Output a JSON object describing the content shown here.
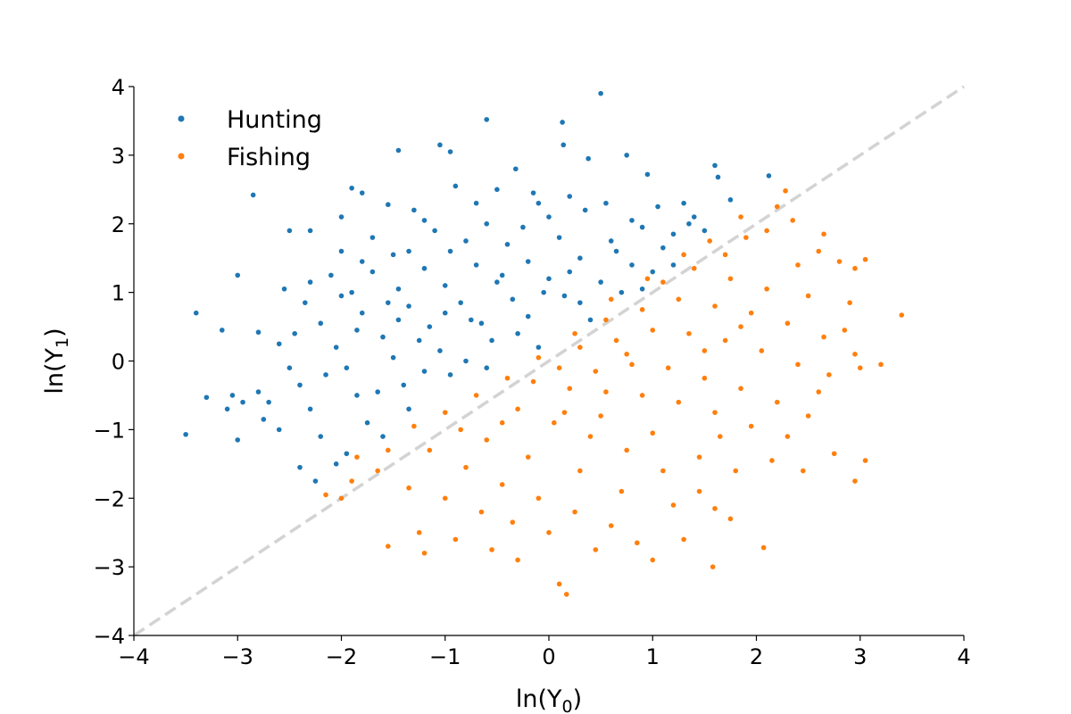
{
  "chart_data": {
    "type": "scatter",
    "xlabel": "ln(Y",
    "xlabel_sub": "0",
    "xlabel_close": ")",
    "ylabel": "ln(Y",
    "ylabel_sub": "1",
    "ylabel_close": ")",
    "xlim": [
      -4,
      4
    ],
    "ylim": [
      -4,
      4
    ],
    "xticks": [
      -4,
      -3,
      -2,
      -1,
      0,
      1,
      2,
      3,
      4
    ],
    "yticks": [
      -4,
      -3,
      -2,
      -1,
      0,
      1,
      2,
      3,
      4
    ],
    "xtick_labels": [
      "−4",
      "−3",
      "−2",
      "−1",
      "0",
      "1",
      "2",
      "3",
      "4"
    ],
    "ytick_labels": [
      "−4",
      "−3",
      "−2",
      "−1",
      "0",
      "1",
      "2",
      "3",
      "4"
    ],
    "grid": false,
    "legend_position": "top-left",
    "reference_line": {
      "style": "dashed",
      "color": "#d3d3d3",
      "from": [
        -4,
        -4
      ],
      "to": [
        4,
        4
      ]
    },
    "series": [
      {
        "name": "Hunting",
        "color": "#1f77b4",
        "points": [
          [
            0.5,
            3.9
          ],
          [
            -0.6,
            3.52
          ],
          [
            0.13,
            3.48
          ],
          [
            0.14,
            3.15
          ],
          [
            -1.05,
            3.15
          ],
          [
            -1.45,
            3.07
          ],
          [
            -0.95,
            3.05
          ],
          [
            0.38,
            2.95
          ],
          [
            0.75,
            3.0
          ],
          [
            -0.32,
            2.8
          ],
          [
            0.95,
            2.72
          ],
          [
            1.6,
            2.85
          ],
          [
            1.63,
            2.68
          ],
          [
            2.12,
            2.7
          ],
          [
            -1.9,
            2.52
          ],
          [
            -2.85,
            2.42
          ],
          [
            -1.8,
            2.45
          ],
          [
            -0.9,
            2.55
          ],
          [
            -0.5,
            2.5
          ],
          [
            0.2,
            2.4
          ],
          [
            1.3,
            2.3
          ],
          [
            1.75,
            2.35
          ],
          [
            -1.55,
            2.28
          ],
          [
            -2.0,
            2.1
          ],
          [
            -1.3,
            2.2
          ],
          [
            -0.1,
            2.3
          ],
          [
            0.55,
            2.3
          ],
          [
            1.05,
            2.25
          ],
          [
            -2.5,
            1.9
          ],
          [
            -2.3,
            1.9
          ],
          [
            -1.7,
            1.8
          ],
          [
            -1.1,
            1.9
          ],
          [
            -0.6,
            2.0
          ],
          [
            0.0,
            2.1
          ],
          [
            0.8,
            2.05
          ],
          [
            1.35,
            2.0
          ],
          [
            -3.0,
            1.25
          ],
          [
            -2.0,
            1.6
          ],
          [
            -1.5,
            1.55
          ],
          [
            -0.95,
            1.6
          ],
          [
            -0.4,
            1.7
          ],
          [
            0.1,
            1.8
          ],
          [
            0.6,
            1.75
          ],
          [
            1.1,
            1.65
          ],
          [
            -2.55,
            1.05
          ],
          [
            -2.1,
            1.25
          ],
          [
            -1.7,
            1.3
          ],
          [
            -1.2,
            1.35
          ],
          [
            -0.7,
            1.4
          ],
          [
            -0.2,
            1.45
          ],
          [
            0.3,
            1.5
          ],
          [
            0.8,
            1.4
          ],
          [
            -3.4,
            0.7
          ],
          [
            -3.15,
            0.45
          ],
          [
            -2.8,
            0.42
          ],
          [
            -2.35,
            0.85
          ],
          [
            -1.9,
            1.0
          ],
          [
            -1.45,
            1.05
          ],
          [
            -1.0,
            1.1
          ],
          [
            -0.5,
            1.15
          ],
          [
            0.0,
            1.2
          ],
          [
            0.5,
            1.15
          ],
          [
            -2.6,
            0.25
          ],
          [
            -2.2,
            0.55
          ],
          [
            -1.8,
            0.7
          ],
          [
            -1.35,
            0.8
          ],
          [
            -0.85,
            0.85
          ],
          [
            -0.35,
            0.9
          ],
          [
            0.15,
            0.95
          ],
          [
            -3.3,
            -0.53
          ],
          [
            -3.05,
            -0.5
          ],
          [
            -2.95,
            -0.6
          ],
          [
            -2.5,
            -0.1
          ],
          [
            -2.05,
            0.2
          ],
          [
            -1.6,
            0.35
          ],
          [
            -1.15,
            0.5
          ],
          [
            -0.65,
            0.55
          ],
          [
            -0.2,
            0.65
          ],
          [
            -2.8,
            -0.45
          ],
          [
            -2.4,
            -0.35
          ],
          [
            -1.95,
            -0.1
          ],
          [
            -1.5,
            0.05
          ],
          [
            -1.05,
            0.15
          ],
          [
            -0.55,
            0.3
          ],
          [
            -3.5,
            -1.07
          ],
          [
            -3.1,
            -0.7
          ],
          [
            -2.75,
            -0.85
          ],
          [
            -2.3,
            -0.7
          ],
          [
            -1.85,
            -0.5
          ],
          [
            -1.4,
            -0.35
          ],
          [
            -0.95,
            -0.2
          ],
          [
            -3.0,
            -1.15
          ],
          [
            -2.6,
            -1.0
          ],
          [
            -2.2,
            -1.1
          ],
          [
            -1.75,
            -0.9
          ],
          [
            -1.35,
            -0.7
          ],
          [
            -2.4,
            -1.55
          ],
          [
            -2.25,
            -1.75
          ],
          [
            -1.95,
            -1.35
          ],
          [
            -1.6,
            -1.1
          ],
          [
            -2.05,
            -1.5
          ],
          [
            -0.3,
            0.4
          ],
          [
            0.3,
            0.85
          ],
          [
            0.7,
            1.0
          ],
          [
            1.0,
            1.3
          ],
          [
            -0.8,
            0.0
          ],
          [
            -1.2,
            -0.15
          ],
          [
            -1.65,
            -0.45
          ],
          [
            -0.1,
            0.2
          ],
          [
            0.4,
            0.6
          ],
          [
            0.9,
            1.05
          ],
          [
            1.2,
            1.4
          ],
          [
            1.5,
            1.9
          ],
          [
            1.4,
            2.1
          ],
          [
            -0.05,
            1.0
          ],
          [
            -0.75,
            0.6
          ],
          [
            -1.25,
            0.3
          ],
          [
            -1.85,
            0.45
          ],
          [
            -2.15,
            -0.2
          ],
          [
            -2.7,
            -0.6
          ],
          [
            0.2,
            1.3
          ],
          [
            -0.45,
            1.25
          ],
          [
            -1.0,
            0.7
          ],
          [
            -1.55,
            0.85
          ],
          [
            -2.0,
            0.95
          ],
          [
            -2.45,
            0.4
          ],
          [
            0.65,
            1.6
          ],
          [
            -0.25,
            1.95
          ],
          [
            -0.8,
            1.75
          ],
          [
            -1.35,
            1.6
          ],
          [
            -1.8,
            1.45
          ],
          [
            -2.3,
            1.15
          ],
          [
            0.35,
            2.2
          ],
          [
            -0.15,
            2.45
          ],
          [
            -0.7,
            2.3
          ],
          [
            -1.2,
            2.05
          ],
          [
            0.9,
            1.95
          ],
          [
            1.2,
            1.85
          ],
          [
            -1.45,
            0.6
          ],
          [
            -0.6,
            -0.1
          ]
        ]
      },
      {
        "name": "Fishing",
        "color": "#ff7f0e",
        "points": [
          [
            2.28,
            2.48
          ],
          [
            2.35,
            2.05
          ],
          [
            2.2,
            2.25
          ],
          [
            2.65,
            1.85
          ],
          [
            2.6,
            1.6
          ],
          [
            2.1,
            1.9
          ],
          [
            1.9,
            1.8
          ],
          [
            2.8,
            1.45
          ],
          [
            2.95,
            1.35
          ],
          [
            3.05,
            1.48
          ],
          [
            1.85,
            2.1
          ],
          [
            1.55,
            1.75
          ],
          [
            2.4,
            1.4
          ],
          [
            1.7,
            1.55
          ],
          [
            3.4,
            0.67
          ],
          [
            2.9,
            0.85
          ],
          [
            2.5,
            0.95
          ],
          [
            2.1,
            1.05
          ],
          [
            1.75,
            1.2
          ],
          [
            1.4,
            1.35
          ],
          [
            1.1,
            1.15
          ],
          [
            3.2,
            -0.05
          ],
          [
            2.95,
            0.1
          ],
          [
            2.65,
            0.35
          ],
          [
            2.3,
            0.55
          ],
          [
            1.95,
            0.7
          ],
          [
            1.6,
            0.8
          ],
          [
            1.25,
            0.9
          ],
          [
            0.9,
            0.75
          ],
          [
            0.55,
            0.6
          ],
          [
            3.0,
            -0.1
          ],
          [
            2.7,
            -0.2
          ],
          [
            2.4,
            -0.05
          ],
          [
            2.05,
            0.15
          ],
          [
            1.7,
            0.3
          ],
          [
            1.35,
            0.4
          ],
          [
            1.0,
            0.45
          ],
          [
            0.65,
            0.3
          ],
          [
            0.3,
            0.2
          ],
          [
            2.75,
            -1.35
          ],
          [
            2.95,
            -1.75
          ],
          [
            3.05,
            -1.45
          ],
          [
            2.5,
            -0.8
          ],
          [
            2.2,
            -0.6
          ],
          [
            1.85,
            -0.4
          ],
          [
            1.5,
            -0.25
          ],
          [
            1.15,
            -0.1
          ],
          [
            0.8,
            -0.05
          ],
          [
            0.45,
            -0.15
          ],
          [
            0.1,
            -0.1
          ],
          [
            2.3,
            -1.1
          ],
          [
            1.95,
            -0.95
          ],
          [
            1.6,
            -0.75
          ],
          [
            1.25,
            -0.6
          ],
          [
            0.9,
            -0.5
          ],
          [
            0.55,
            -0.45
          ],
          [
            0.2,
            -0.4
          ],
          [
            -0.15,
            -0.3
          ],
          [
            2.07,
            -2.72
          ],
          [
            1.75,
            -2.3
          ],
          [
            1.6,
            -2.15
          ],
          [
            1.45,
            -1.9
          ],
          [
            1.1,
            -1.6
          ],
          [
            0.75,
            -1.3
          ],
          [
            0.4,
            -1.1
          ],
          [
            0.05,
            -0.9
          ],
          [
            -0.3,
            -0.7
          ],
          [
            1.58,
            -3.0
          ],
          [
            1.3,
            -2.6
          ],
          [
            1.0,
            -2.9
          ],
          [
            0.85,
            -2.65
          ],
          [
            0.6,
            -2.4
          ],
          [
            0.25,
            -2.2
          ],
          [
            -0.1,
            -2.0
          ],
          [
            -0.45,
            -1.8
          ],
          [
            -0.8,
            -1.55
          ],
          [
            -1.15,
            -1.3
          ],
          [
            0.17,
            -3.4
          ],
          [
            0.1,
            -3.25
          ],
          [
            -0.3,
            -2.9
          ],
          [
            -0.55,
            -2.75
          ],
          [
            -0.9,
            -2.6
          ],
          [
            -1.25,
            -2.5
          ],
          [
            -1.55,
            -2.7
          ],
          [
            -1.2,
            -2.8
          ],
          [
            -0.65,
            -2.2
          ],
          [
            -1.0,
            -2.0
          ],
          [
            -1.35,
            -1.85
          ],
          [
            -1.65,
            -1.6
          ],
          [
            -1.85,
            -1.4
          ],
          [
            -2.0,
            -2.0
          ],
          [
            -2.15,
            -1.95
          ],
          [
            -1.9,
            -1.75
          ],
          [
            -1.55,
            -1.3
          ],
          [
            -1.3,
            -0.95
          ],
          [
            -1.0,
            -0.75
          ],
          [
            -0.7,
            -0.5
          ],
          [
            -0.4,
            -0.25
          ],
          [
            -0.1,
            0.05
          ],
          [
            0.25,
            0.4
          ],
          [
            0.6,
            0.9
          ],
          [
            0.95,
            1.2
          ],
          [
            1.3,
            1.55
          ],
          [
            0.5,
            -0.8
          ],
          [
            1.0,
            -1.05
          ],
          [
            1.45,
            -1.4
          ],
          [
            1.8,
            -1.6
          ],
          [
            2.15,
            -1.45
          ],
          [
            2.45,
            -1.6
          ],
          [
            0.3,
            -1.6
          ],
          [
            -0.2,
            -1.4
          ],
          [
            -0.6,
            -1.15
          ],
          [
            0.7,
            -1.9
          ],
          [
            1.2,
            -2.1
          ],
          [
            0.0,
            -2.5
          ],
          [
            -0.35,
            -2.35
          ],
          [
            0.45,
            -2.75
          ],
          [
            1.65,
            -1.1
          ],
          [
            2.6,
            -0.45
          ],
          [
            2.85,
            0.45
          ],
          [
            1.5,
            0.15
          ],
          [
            0.75,
            0.1
          ],
          [
            -0.45,
            -0.9
          ],
          [
            0.15,
            -0.75
          ],
          [
            -0.85,
            -1.0
          ],
          [
            1.85,
            0.5
          ]
        ]
      }
    ]
  }
}
